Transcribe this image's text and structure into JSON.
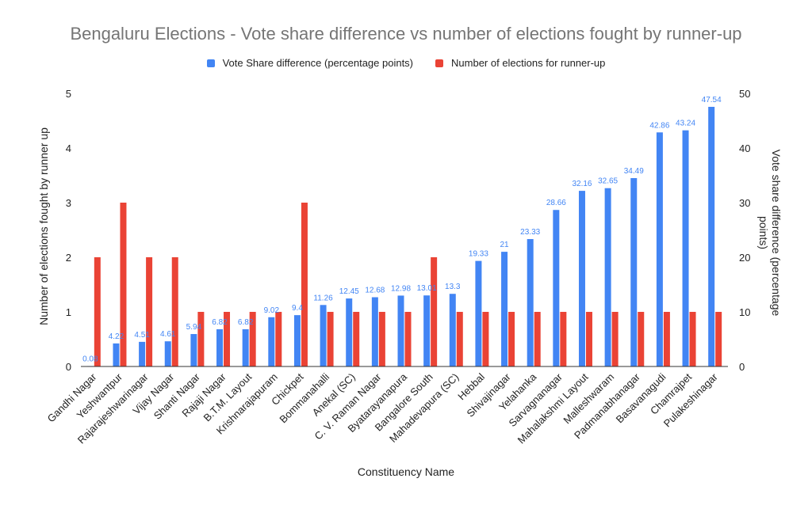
{
  "chart_data": {
    "type": "bar",
    "title": "Bengaluru Elections - Vote share difference vs number of elections fought by runner-up",
    "xlabel": "Constituency Name",
    "ylabel_left": "Number of elections fought by runner up",
    "ylabel_right": "Vote share difference (percentage points)",
    "ylim_left": [
      0,
      5
    ],
    "ylim_right": [
      0,
      50
    ],
    "yticks_left": [
      "0",
      "1",
      "2",
      "3",
      "4",
      "5"
    ],
    "yticks_right": [
      "0",
      "10",
      "20",
      "30",
      "40",
      "50"
    ],
    "legend_position": "top",
    "grid": false,
    "categories": [
      "Gandhi Nagar",
      "Yeshwantpur",
      "Rajarajeshwarinagar",
      "Vijay Nagar",
      "Shanti Nagar",
      "Rajaji Nagar",
      "B.T.M. Layout",
      "Krishnarajapuram",
      "Chickpet",
      "Bommanahalli",
      "Anekal (SC)",
      "C. V. Raman Nagar",
      "Byatarayanapura",
      "Bangalore South",
      "Mahadevapura (SC)",
      "Hebbal",
      "Shivajinagar",
      "Yelahanka",
      "Sarvagnanagar",
      "Mahalakshmi Layout",
      "Malleshwaram",
      "Padmanabhanagar",
      "Basavanagudi",
      "Chamrajpet",
      "Pulakeshinagar"
    ],
    "series": [
      {
        "name": "Vote Share difference (percentage points)",
        "color": "#4285f4",
        "axis": "right",
        "values": [
          0.08,
          4.22,
          4.51,
          4.61,
          5.94,
          6.82,
          6.82,
          9.02,
          9.4,
          11.26,
          12.45,
          12.68,
          12.98,
          13.01,
          13.3,
          19.33,
          21,
          23.33,
          28.66,
          32.16,
          32.65,
          34.49,
          42.86,
          43.24,
          47.54
        ],
        "labels": [
          "0.08",
          "4.22",
          "4.51",
          "4.61",
          "5.94",
          "6.82",
          "6.82",
          "9.02",
          "9.4",
          "11.26",
          "12.45",
          "12.68",
          "12.98",
          "13.01",
          "13.3",
          "19.33",
          "21",
          "23.33",
          "28.66",
          "32.16",
          "32.65",
          "34.49",
          "42.86",
          "43.24",
          "47.54"
        ]
      },
      {
        "name": "Number of elections for runner-up",
        "color": "#ea4335",
        "axis": "left",
        "values": [
          2,
          3,
          2,
          2,
          1,
          1,
          1,
          1,
          3,
          1,
          1,
          1,
          1,
          2,
          1,
          1,
          1,
          1,
          1,
          1,
          1,
          1,
          1,
          1,
          1
        ]
      }
    ]
  }
}
